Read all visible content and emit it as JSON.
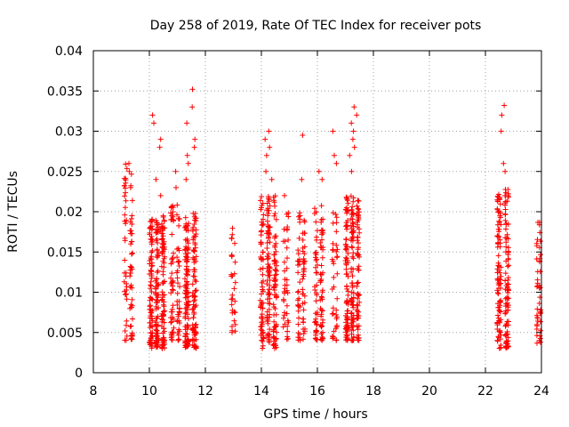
{
  "chart_data": {
    "type": "scatter",
    "title": "Day 258 of 2019, Rate Of TEC Index for receiver pots",
    "xlabel": "GPS time / hours",
    "ylabel": "ROTI / TECUs",
    "xlim": [
      8,
      24
    ],
    "ylim": [
      0,
      0.04
    ],
    "x_ticks": [
      8,
      10,
      12,
      14,
      16,
      18,
      20,
      22,
      24
    ],
    "y_ticks": [
      0,
      0.005,
      0.01,
      0.015,
      0.02,
      0.025,
      0.03,
      0.035,
      0.04
    ],
    "x_tick_labels": [
      "8",
      "10",
      "12",
      "14",
      "16",
      "18",
      "20",
      "22",
      "24"
    ],
    "y_tick_labels": [
      "0",
      "0.005",
      "0.01",
      "0.015",
      "0.02",
      "0.025",
      "0.03",
      "0.035",
      "0.04"
    ],
    "grid": true,
    "marker": "+",
    "series_color": "#ff0000",
    "clusters": [
      {
        "name": "t09.2",
        "x": [
          9.05,
          9.45
        ],
        "y": [
          0.004,
          0.026
        ],
        "n": 80,
        "outliers_y": [
          0.026,
          0.025
        ]
      },
      {
        "name": "t10.3",
        "x": [
          9.95,
          10.6
        ],
        "y": [
          0.003,
          0.0195
        ],
        "n": 260,
        "outliers_y": [
          0.032,
          0.031,
          0.029,
          0.028,
          0.024,
          0.022
        ]
      },
      {
        "name": "t10.9",
        "x": [
          10.7,
          11.15
        ],
        "y": [
          0.004,
          0.021
        ],
        "n": 90,
        "outliers_y": [
          0.025,
          0.023
        ]
      },
      {
        "name": "t11.5",
        "x": [
          11.2,
          11.75
        ],
        "y": [
          0.003,
          0.02
        ],
        "n": 200,
        "outliers_y": [
          0.0352,
          0.033,
          0.031,
          0.029,
          0.028,
          0.027,
          0.026,
          0.024
        ]
      },
      {
        "name": "t13.0",
        "x": [
          12.9,
          13.1
        ],
        "y": [
          0.005,
          0.019
        ],
        "n": 30,
        "outliers_y": []
      },
      {
        "name": "t14.2",
        "x": [
          13.9,
          14.6
        ],
        "y": [
          0.003,
          0.022
        ],
        "n": 220,
        "outliers_y": [
          0.03,
          0.029,
          0.028,
          0.027,
          0.025,
          0.024
        ]
      },
      {
        "name": "t14.9",
        "x": [
          14.75,
          15.0
        ],
        "y": [
          0.004,
          0.02
        ],
        "n": 40,
        "outliers_y": [
          0.022
        ]
      },
      {
        "name": "t15.4",
        "x": [
          15.25,
          15.6
        ],
        "y": [
          0.004,
          0.021
        ],
        "n": 70,
        "outliers_y": [
          0.0295,
          0.024
        ]
      },
      {
        "name": "t16.0",
        "x": [
          15.85,
          16.25
        ],
        "y": [
          0.004,
          0.021
        ],
        "n": 90,
        "outliers_y": [
          0.025,
          0.024
        ]
      },
      {
        "name": "t16.6",
        "x": [
          16.5,
          16.75
        ],
        "y": [
          0.004,
          0.02
        ],
        "n": 40,
        "outliers_y": [
          0.03,
          0.027,
          0.026
        ]
      },
      {
        "name": "t17.2",
        "x": [
          16.95,
          17.55
        ],
        "y": [
          0.004,
          0.022
        ],
        "n": 220,
        "outliers_y": [
          0.033,
          0.032,
          0.031,
          0.03,
          0.029,
          0.028,
          0.027,
          0.025
        ]
      },
      {
        "name": "t22.6",
        "x": [
          22.35,
          22.9
        ],
        "y": [
          0.003,
          0.023
        ],
        "n": 190,
        "outliers_y": [
          0.0332,
          0.032,
          0.03,
          0.026,
          0.025
        ]
      },
      {
        "name": "t23.9",
        "x": [
          23.8,
          24.0
        ],
        "y": [
          0.003,
          0.019
        ],
        "n": 45,
        "outliers_y": []
      }
    ]
  }
}
